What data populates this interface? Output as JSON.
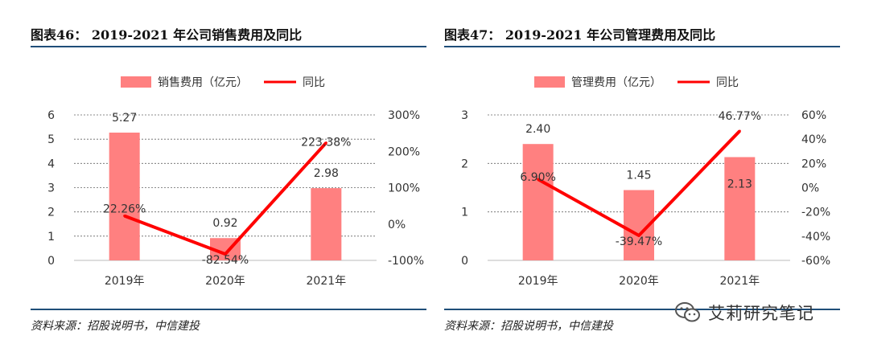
{
  "left": {
    "title": "图表46：  2019-2021 年公司销售费用及同比",
    "source": "资料来源：招股说明书，中信建投",
    "chart_data": {
      "type": "bar",
      "categories": [
        "2019年",
        "2020年",
        "2021年"
      ],
      "series": [
        {
          "name": "销售费用（亿元）",
          "type": "bar",
          "axis": "left",
          "values": [
            5.27,
            0.92,
            2.98
          ],
          "labels": [
            "5.27",
            "0.92",
            "2.98"
          ],
          "color": "#ff8080"
        },
        {
          "name": "同比",
          "type": "line",
          "axis": "right",
          "values": [
            22.26,
            -82.54,
            223.38
          ],
          "labels": [
            "22.26%",
            "-82.54%",
            "223.38%"
          ],
          "color": "#ff0000"
        }
      ],
      "ylim_left": [
        0,
        6
      ],
      "yticks_left": [
        "0",
        "1",
        "2",
        "3",
        "4",
        "5",
        "6"
      ],
      "ylim_right": [
        -100,
        300
      ],
      "yticks_right": [
        "-100%",
        "0%",
        "100%",
        "200%",
        "300%"
      ],
      "grid": true,
      "legend": "top"
    }
  },
  "right": {
    "title": "图表47：  2019-2021 年公司管理费用及同比",
    "source": "资料来源：招股说明书，中信建投",
    "chart_data": {
      "type": "bar",
      "categories": [
        "2019年",
        "2020年",
        "2021年"
      ],
      "series": [
        {
          "name": "管理费用（亿元）",
          "type": "bar",
          "axis": "left",
          "values": [
            2.4,
            1.45,
            2.13
          ],
          "labels": [
            "2.40",
            "1.45",
            "2.13"
          ],
          "color": "#ff8080"
        },
        {
          "name": "同比",
          "type": "line",
          "axis": "right",
          "values": [
            6.9,
            -39.47,
            46.77
          ],
          "labels": [
            "6.90%",
            "-39.47%",
            "46.77%"
          ],
          "color": "#ff0000"
        }
      ],
      "ylim_left": [
        0,
        3
      ],
      "yticks_left": [
        "0",
        "1",
        "2",
        "3"
      ],
      "ylim_right": [
        -60,
        60
      ],
      "yticks_right": [
        "-60%",
        "-40%",
        "-20%",
        "0%",
        "20%",
        "40%",
        "60%"
      ],
      "grid": true,
      "legend": "top"
    }
  },
  "watermark": {
    "text": "艾莉研究笔记",
    "icon": "wechat-icon"
  }
}
